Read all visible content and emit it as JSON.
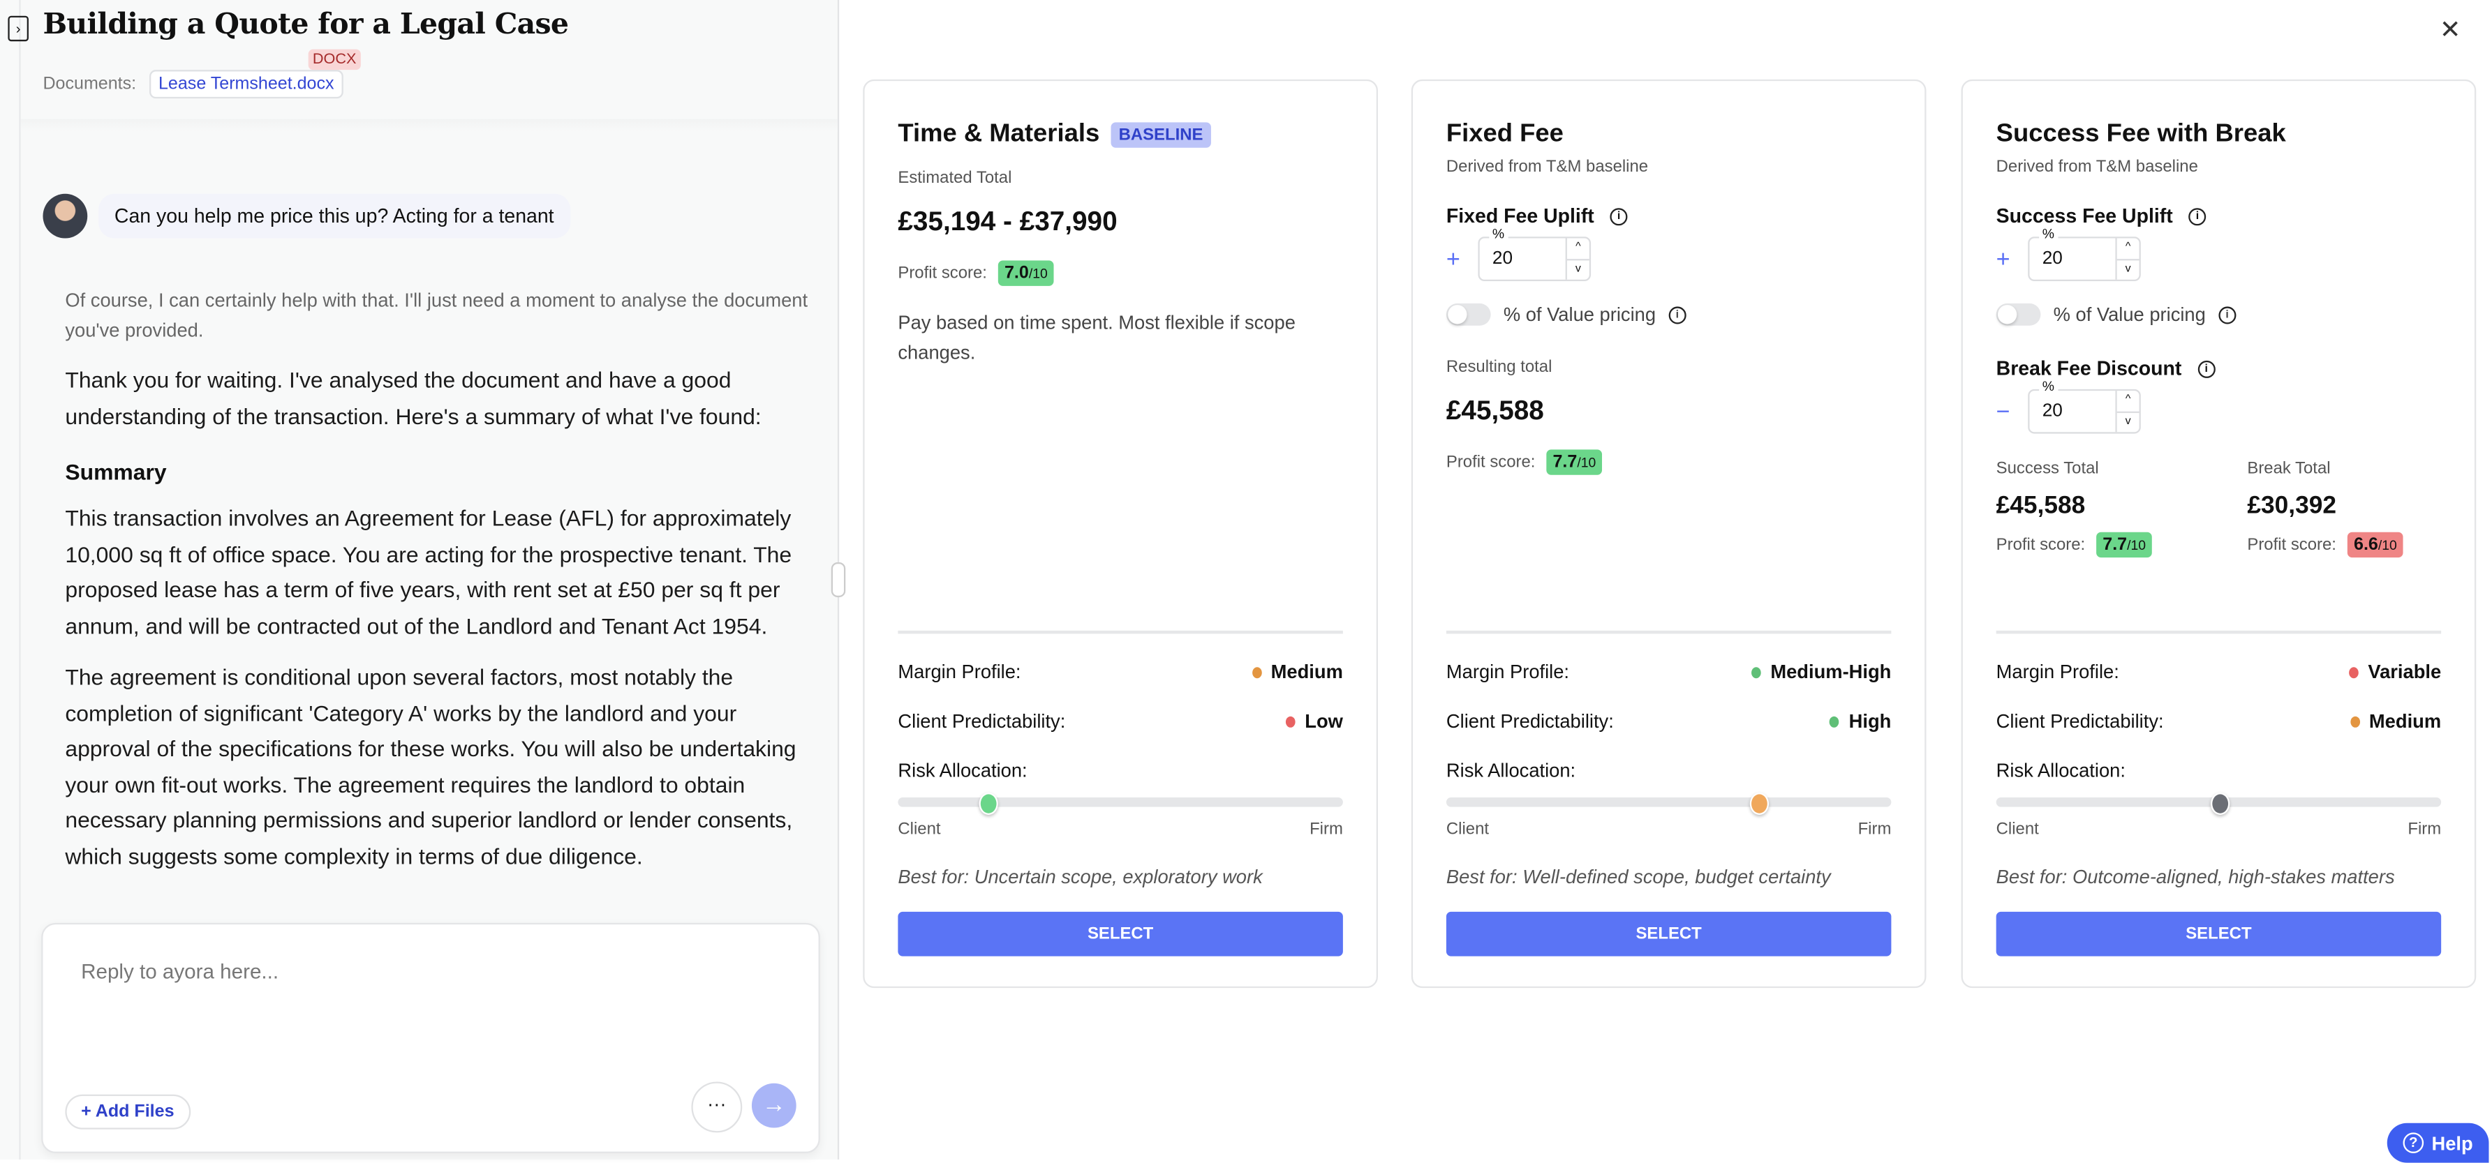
{
  "header": {
    "title": "Building a Quote for a Legal Case",
    "documents_label": "Documents:",
    "document_name": "Lease Termsheet.docx",
    "document_type": "DOCX"
  },
  "chat": {
    "user_message": "Can you help me price this up? Acting for a tenant",
    "assistant_intro": "Of course, I can certainly help with that. I'll just need a moment to analyse the document you've provided.",
    "assistant_p1": "Thank you for waiting. I've analysed the document and have a good understanding of the transaction. Here's a summary of what I've found:",
    "summary_heading": "Summary",
    "assistant_p2": "This transaction involves an Agreement for Lease (AFL) for approximately 10,000 sq ft of office space. You are acting for the prospective tenant. The proposed lease has a term of five years, with rent set at £50 per sq ft per annum, and will be contracted out of the Landlord and Tenant Act 1954.",
    "assistant_p3": "The agreement is conditional upon several factors, most notably the completion of significant 'Category A' works by the landlord and your approval of the specifications for these works. You will also be undertaking your own fit-out works. The agreement requires the landlord to obtain necessary planning permissions and superior landlord or lender consents, which suggests some complexity in terms of due diligence.",
    "input_placeholder": "Reply to ayora here...",
    "add_files": "Add Files",
    "more": "···",
    "send": "→"
  },
  "common": {
    "profit_score": "Profit score:",
    "out_of": "/10",
    "margin_profile": "Margin Profile:",
    "client_predictability": "Client Predictability:",
    "risk_allocation": "Risk Allocation:",
    "client": "Client",
    "firm": "Firm",
    "select": "SELECT",
    "derived": "Derived from T&M baseline",
    "value_pricing": "% of Value pricing",
    "pct": "%"
  },
  "colors": {
    "green": "#5fbf77",
    "orange": "#e39540",
    "red": "#e86262",
    "gray": "#6b6e75",
    "accent": "#5a74f5"
  },
  "cards": [
    {
      "title": "Time & Materials",
      "badge": "BASELINE",
      "total_label": "Estimated Total",
      "total": "£35,194 - £37,990",
      "score": "7.0",
      "description": "Pay based on time spent. Most flexible if scope changes.",
      "margin": "Medium",
      "margin_color": "orange",
      "predictability": "Low",
      "predictability_color": "red",
      "risk_fraction": 0.2,
      "risk_color": "#6bd68a",
      "best_for": "Best for: Uncertain scope, exploratory work"
    },
    {
      "title": "Fixed Fee",
      "uplift_label": "Fixed Fee Uplift",
      "uplift_value": "20",
      "total_label": "Resulting total",
      "total": "£45,588",
      "score": "7.7",
      "margin": "Medium-High",
      "margin_color": "green",
      "predictability": "High",
      "predictability_color": "green",
      "risk_fraction": 0.7,
      "risk_color": "#f0a85c",
      "best_for": "Best for: Well-defined scope, budget certainty"
    },
    {
      "title": "Success Fee with Break",
      "uplift_label": "Success Fee Uplift",
      "uplift_value": "20",
      "discount_label": "Break Fee Discount",
      "discount_value": "20",
      "success_label": "Success Total",
      "success_total": "£45,588",
      "success_score": "7.7",
      "break_label": "Break Total",
      "break_total": "£30,392",
      "break_score": "6.6",
      "margin": "Variable",
      "margin_color": "red",
      "predictability": "Medium",
      "predictability_color": "orange",
      "risk_fraction": 0.5,
      "risk_color": "#6b6e75",
      "best_for": "Best for: Outcome-aligned, high-stakes matters"
    }
  ],
  "help": "Help"
}
